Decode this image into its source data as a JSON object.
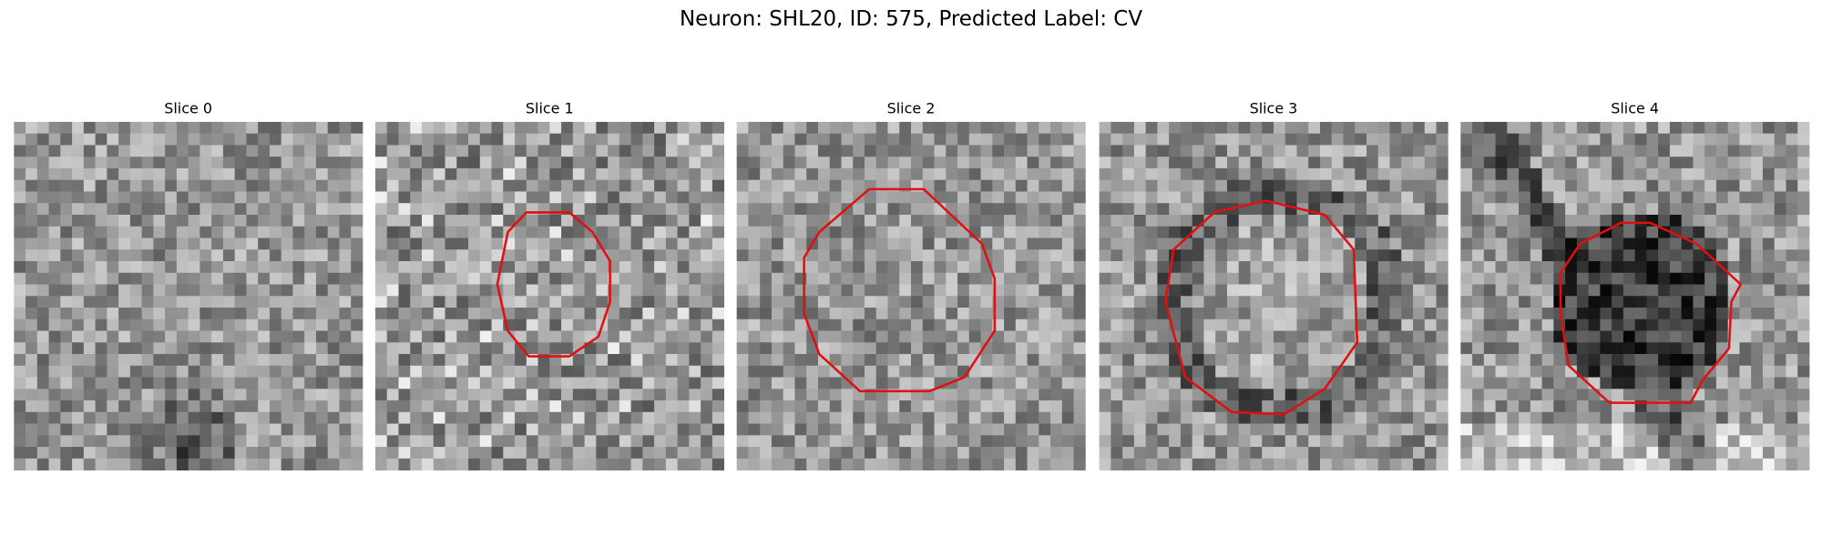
{
  "title": "Neuron: SHL20, ID: 575, Predicted Label: CV",
  "panels": [
    {
      "title": "Slice 0"
    },
    {
      "title": "Slice 1"
    },
    {
      "title": "Slice 2"
    },
    {
      "title": "Slice 3"
    },
    {
      "title": "Slice 4"
    }
  ]
}
